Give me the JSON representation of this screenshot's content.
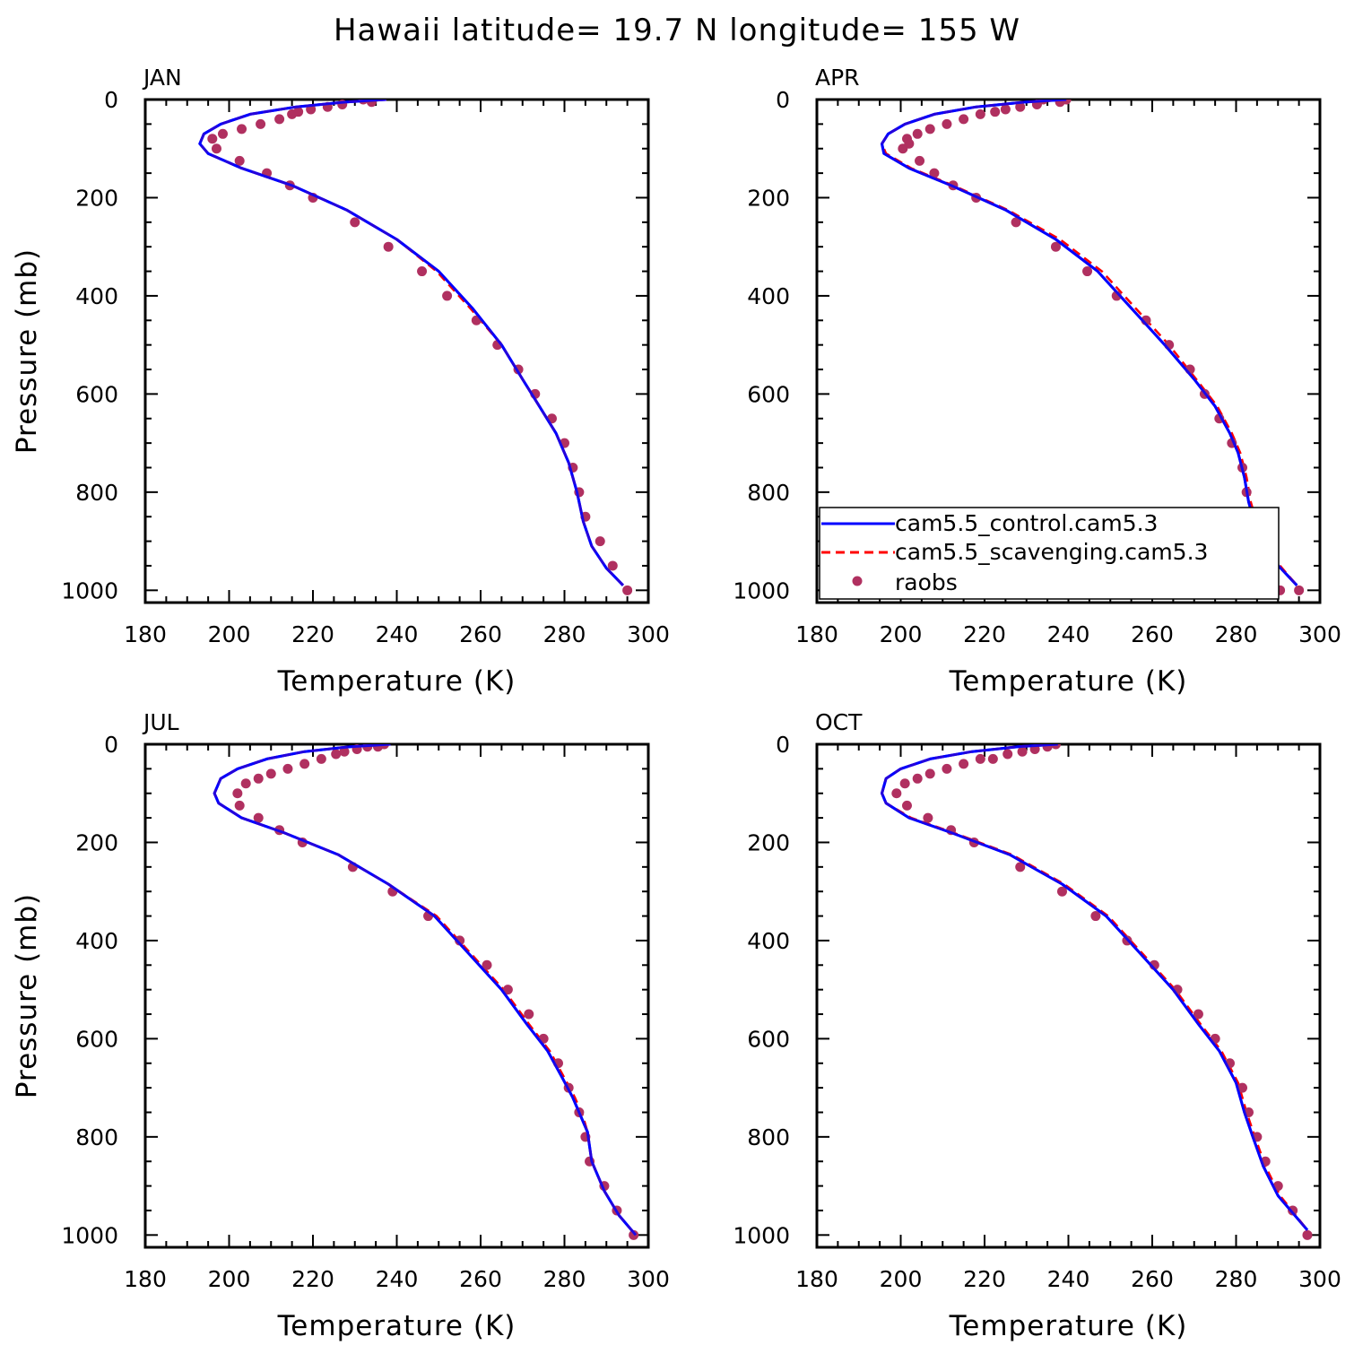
{
  "figure_title": "Hawaii  latitude= 19.7 N longitude= 155 W",
  "colors": {
    "control": "#0000ff",
    "scavenging": "#ff0000",
    "raobs": "#b03060",
    "axes": "#000000"
  },
  "chart_data": [
    {
      "type": "line",
      "title": "JAN",
      "xlabel": "Temperature (K)",
      "ylabel": "Pressure (mb)",
      "xlim": [
        180,
        300
      ],
      "ylim": [
        1025,
        0
      ],
      "xticks": [
        "180",
        "200",
        "220",
        "240",
        "260",
        "280",
        "300"
      ],
      "yticks": [
        "0",
        "200",
        "400",
        "600",
        "800",
        "1000"
      ],
      "series": [
        {
          "name": "cam5.5_control.cam5.3",
          "style": "solid",
          "x": [
            237.5,
            228,
            216,
            205,
            198,
            194,
            193,
            195,
            203,
            215,
            228,
            240,
            250,
            258,
            265,
            270,
            274,
            278,
            281,
            283,
            284.5,
            286.5,
            290,
            294
          ],
          "y": [
            0,
            5,
            15,
            30,
            50,
            70,
            90,
            110,
            140,
            175,
            225,
            285,
            350,
            425,
            500,
            570,
            625,
            680,
            740,
            800,
            860,
            910,
            955,
            990
          ]
        },
        {
          "name": "cam5.5_scavenging.cam5.3",
          "style": "dashed",
          "x": [
            237.5,
            228,
            216,
            205,
            198,
            194,
            193,
            195,
            203,
            215,
            228,
            240,
            249.5,
            257.5,
            265,
            270,
            274,
            278,
            281,
            283,
            284.5,
            286.5,
            290,
            294
          ],
          "y": [
            0,
            5,
            15,
            30,
            50,
            70,
            90,
            110,
            140,
            175,
            225,
            285,
            350,
            425,
            500,
            570,
            625,
            680,
            740,
            800,
            860,
            910,
            955,
            990
          ]
        },
        {
          "name": "raobs",
          "style": "markers",
          "x": [
            232,
            234,
            227,
            223.5,
            219.5,
            216.5,
            215,
            212,
            207.5,
            203,
            198.5,
            196,
            197,
            202.5,
            209,
            214.5,
            220,
            230,
            238,
            246,
            252,
            259,
            264,
            269,
            273,
            277,
            280,
            282,
            283.5,
            285,
            288.5,
            291.5,
            295
          ],
          "y": [
            0,
            5,
            10,
            15,
            20,
            25,
            30,
            40,
            50,
            60,
            70,
            80,
            100,
            125,
            150,
            175,
            200,
            250,
            300,
            350,
            400,
            450,
            500,
            550,
            600,
            650,
            700,
            750,
            800,
            850,
            900,
            950,
            1000
          ]
        }
      ]
    },
    {
      "type": "line",
      "title": "APR",
      "xlabel": "Temperature (K)",
      "ylabel": "",
      "xlim": [
        180,
        300
      ],
      "ylim": [
        1025,
        0
      ],
      "xticks": [
        "180",
        "200",
        "220",
        "240",
        "260",
        "280",
        "300"
      ],
      "yticks": [
        "0",
        "200",
        "400",
        "600",
        "800",
        "1000"
      ],
      "series": [
        {
          "name": "cam5.5_control.cam5.3",
          "style": "solid",
          "x": [
            239.5,
            230,
            218,
            208,
            201,
            197,
            195.5,
            196,
            202,
            212,
            225,
            237,
            247,
            255,
            263,
            270,
            275,
            278.5,
            280.5,
            282,
            283,
            285,
            289,
            294.5
          ],
          "y": [
            0,
            5,
            15,
            30,
            50,
            70,
            90,
            110,
            140,
            175,
            225,
            285,
            350,
            425,
            500,
            570,
            625,
            680,
            720,
            770,
            820,
            880,
            940,
            990
          ]
        },
        {
          "name": "cam5.5_scavenging.cam5.3",
          "style": "dashed",
          "x": [
            239.5,
            230,
            218,
            208,
            201,
            197,
            195.5,
            196.5,
            202.5,
            212.5,
            225.5,
            238,
            248,
            256,
            264,
            270.5,
            275.5,
            279,
            281,
            282.5,
            283.5,
            285.5,
            289.5,
            294.5
          ],
          "y": [
            0,
            5,
            15,
            30,
            50,
            70,
            90,
            110,
            140,
            175,
            225,
            285,
            350,
            425,
            500,
            570,
            625,
            680,
            720,
            770,
            820,
            880,
            940,
            990
          ]
        },
        {
          "name": "raobs",
          "style": "markers",
          "x": [
            239.5,
            238,
            234,
            232.5,
            228.5,
            225,
            222.5,
            219,
            215,
            211,
            207,
            204,
            201.5,
            200.5,
            202,
            204.5,
            208,
            212.5,
            218,
            227.5,
            237,
            244.5,
            251.5,
            258.5,
            264,
            269,
            272.5,
            276,
            279,
            281.5,
            282.5,
            283,
            285,
            288,
            290.5,
            295
          ],
          "y": [
            0,
            5,
            0,
            10,
            15,
            20,
            25,
            30,
            40,
            50,
            60,
            70,
            80,
            100,
            90,
            125,
            150,
            175,
            200,
            250,
            300,
            350,
            400,
            450,
            500,
            550,
            600,
            650,
            700,
            750,
            800,
            850,
            900,
            950,
            1000,
            1000
          ]
        }
      ]
    },
    {
      "type": "line",
      "title": "JUL",
      "xlabel": "Temperature (K)",
      "ylabel": "Pressure (mb)",
      "xlim": [
        180,
        300
      ],
      "ylim": [
        1025,
        0
      ],
      "xticks": [
        "180",
        "200",
        "220",
        "240",
        "260",
        "280",
        "300"
      ],
      "yticks": [
        "0",
        "200",
        "400",
        "600",
        "800",
        "1000"
      ],
      "series": [
        {
          "name": "cam5.5_control.cam5.3",
          "style": "solid",
          "x": [
            238.5,
            229,
            218,
            209,
            202,
            198,
            196.5,
            197.5,
            203,
            213,
            226,
            238,
            249,
            257,
            265,
            271,
            276,
            279.5,
            282,
            284,
            285.5,
            286.5,
            289.5,
            293,
            297
          ],
          "y": [
            0,
            5,
            15,
            30,
            50,
            70,
            100,
            120,
            150,
            180,
            225,
            285,
            350,
            425,
            500,
            570,
            625,
            680,
            720,
            760,
            790,
            850,
            910,
            960,
            1000
          ]
        },
        {
          "name": "cam5.5_scavenging.cam5.3",
          "style": "dashed",
          "x": [
            238.5,
            229,
            218,
            209,
            202,
            198,
            196.5,
            197.5,
            203,
            213,
            226,
            238,
            249.5,
            257.5,
            265.5,
            271.5,
            276.5,
            280,
            282.5,
            284.5,
            285.5,
            286.5,
            289.5,
            293,
            297
          ],
          "y": [
            0,
            5,
            15,
            30,
            50,
            70,
            100,
            120,
            150,
            180,
            225,
            285,
            350,
            425,
            500,
            570,
            625,
            680,
            720,
            760,
            790,
            850,
            910,
            960,
            1000
          ]
        },
        {
          "name": "raobs",
          "style": "markers",
          "x": [
            237,
            235.5,
            233,
            230.5,
            227.5,
            225.5,
            222,
            218,
            214,
            210,
            207,
            204,
            202,
            202.5,
            207,
            212,
            217.5,
            229.5,
            239,
            247.5,
            255,
            261.5,
            266.5,
            271.5,
            275,
            278.5,
            281,
            283.5,
            285,
            286,
            289.5,
            292.5,
            296.5
          ],
          "y": [
            0,
            5,
            5,
            10,
            15,
            20,
            30,
            40,
            50,
            60,
            70,
            80,
            100,
            125,
            150,
            175,
            200,
            250,
            300,
            350,
            400,
            450,
            500,
            550,
            600,
            650,
            700,
            750,
            800,
            850,
            900,
            950,
            1000
          ]
        }
      ]
    },
    {
      "type": "line",
      "title": "OCT",
      "xlabel": "Temperature (K)",
      "ylabel": "",
      "xlim": [
        180,
        300
      ],
      "ylim": [
        1025,
        0
      ],
      "xticks": [
        "180",
        "200",
        "220",
        "240",
        "260",
        "280",
        "300"
      ],
      "yticks": [
        "0",
        "200",
        "400",
        "600",
        "800",
        "1000"
      ],
      "series": [
        {
          "name": "cam5.5_control.cam5.3",
          "style": "solid",
          "x": [
            237.5,
            228,
            217,
            207,
            200,
            196.5,
            195.5,
            196.5,
            202,
            212,
            226,
            238.5,
            249,
            257,
            265,
            271,
            276,
            280,
            282,
            284,
            286.5,
            290,
            297
          ],
          "y": [
            0,
            5,
            15,
            30,
            50,
            70,
            100,
            120,
            150,
            180,
            225,
            285,
            350,
            425,
            500,
            570,
            625,
            690,
            750,
            800,
            860,
            920,
            990
          ]
        },
        {
          "name": "cam5.5_scavenging.cam5.3",
          "style": "dashed",
          "x": [
            237.5,
            228,
            217,
            207,
            200,
            196.5,
            195.5,
            196.5,
            202.5,
            212.5,
            226.5,
            239,
            249.5,
            257.5,
            265.5,
            271.5,
            276.5,
            280.5,
            282.5,
            284.5,
            287,
            290.5,
            297
          ],
          "y": [
            0,
            5,
            15,
            30,
            50,
            70,
            100,
            120,
            150,
            180,
            225,
            285,
            350,
            425,
            500,
            570,
            625,
            690,
            750,
            800,
            860,
            920,
            990
          ]
        },
        {
          "name": "raobs",
          "style": "markers",
          "x": [
            237,
            235,
            232,
            229,
            225.5,
            222,
            219,
            215,
            211,
            207,
            204,
            201,
            199,
            201.5,
            206.5,
            212,
            217.5,
            228.5,
            238.5,
            246.5,
            254,
            260.5,
            266,
            271,
            275,
            278.5,
            281.5,
            283,
            285,
            287,
            290,
            293.5,
            297
          ],
          "y": [
            0,
            5,
            10,
            15,
            20,
            30,
            30,
            40,
            50,
            60,
            70,
            80,
            100,
            125,
            150,
            175,
            200,
            250,
            300,
            350,
            400,
            450,
            500,
            550,
            600,
            650,
            700,
            750,
            800,
            850,
            900,
            950,
            1000
          ]
        }
      ]
    }
  ]
}
